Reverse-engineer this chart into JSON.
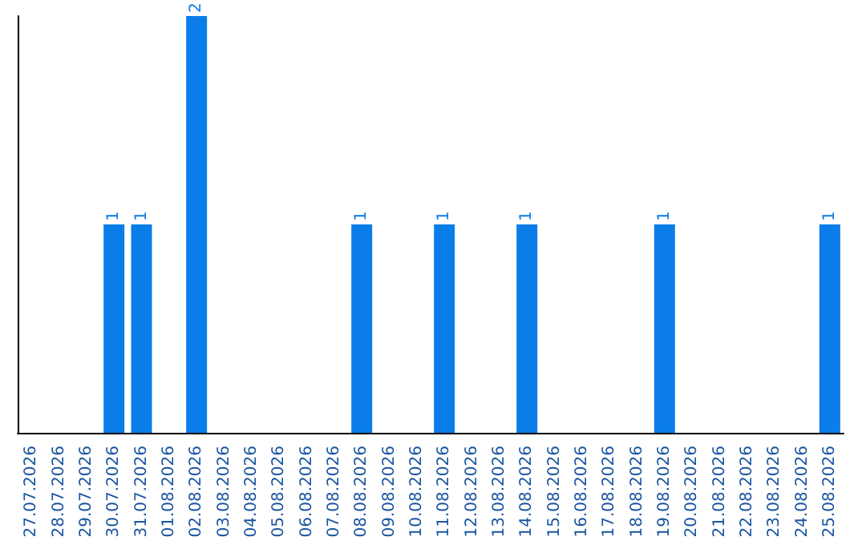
{
  "chart_data": {
    "type": "bar",
    "categories": [
      "27.07.2026",
      "28.07.2026",
      "29.07.2026",
      "30.07.2026",
      "31.07.2026",
      "01.08.2026",
      "02.08.2026",
      "03.08.2026",
      "04.08.2026",
      "05.08.2026",
      "06.08.2026",
      "07.08.2026",
      "08.08.2026",
      "09.08.2026",
      "10.08.2026",
      "11.08.2026",
      "12.08.2026",
      "13.08.2026",
      "14.08.2026",
      "15.08.2026",
      "16.08.2026",
      "17.08.2026",
      "18.08.2026",
      "19.08.2026",
      "20.08.2026",
      "21.08.2026",
      "22.08.2026",
      "23.08.2026",
      "24.08.2026",
      "25.08.2026"
    ],
    "values": [
      0,
      0,
      0,
      1,
      1,
      0,
      2,
      0,
      0,
      0,
      0,
      0,
      1,
      0,
      0,
      1,
      0,
      0,
      1,
      0,
      0,
      0,
      0,
      1,
      0,
      0,
      0,
      0,
      0,
      1
    ],
    "value_labels": [
      null,
      null,
      null,
      "1",
      "1",
      null,
      "2",
      null,
      null,
      null,
      null,
      null,
      "1",
      null,
      null,
      "1",
      null,
      null,
      "1",
      null,
      null,
      null,
      null,
      "1",
      null,
      null,
      null,
      null,
      null,
      "1"
    ],
    "color": "#0a7de8",
    "tick_labels": "x"
  }
}
